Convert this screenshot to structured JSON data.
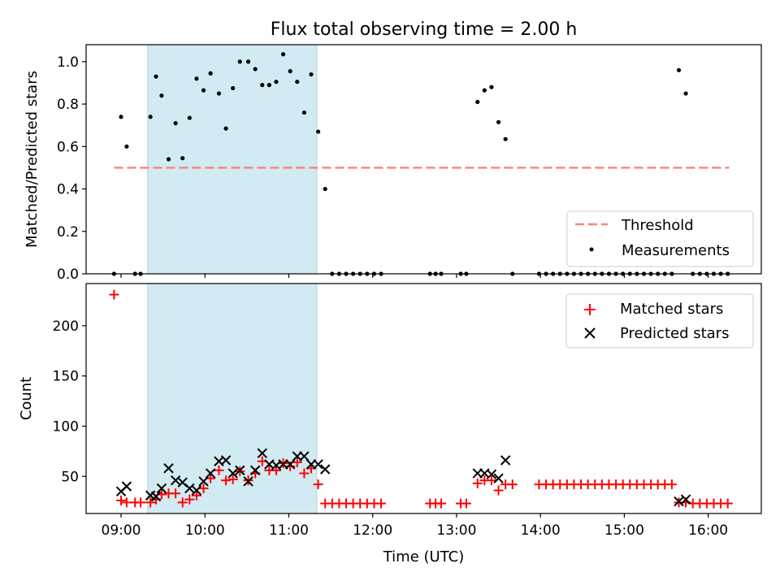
{
  "chart_data": [
    {
      "type": "scatter",
      "title": "Flux total observing time = 2.00 h",
      "xlabel": "",
      "ylabel": "Matched/Predicted stars",
      "xlim": [
        "08:35",
        "16:38"
      ],
      "ylim": [
        0,
        1.08
      ],
      "yticks": [
        0.0,
        0.2,
        0.4,
        0.6,
        0.8,
        1.0
      ],
      "ytick_labels": [
        "0.0",
        "0.2",
        "0.4",
        "0.6",
        "0.8",
        "1.0"
      ],
      "shaded_span": [
        "09:19",
        "11:20"
      ],
      "shade_color": "#add8e6",
      "threshold": {
        "name": "Threshold",
        "y": 0.5,
        "x_range": [
          "08:55",
          "16:15"
        ],
        "color": "#ff7f7f"
      },
      "series": [
        {
          "name": "Measurements",
          "color": "#000000",
          "points": [
            [
              "08:55",
              0.0
            ],
            [
              "09:00",
              0.74
            ],
            [
              "09:04",
              0.6
            ],
            [
              "09:10",
              0.0
            ],
            [
              "09:14",
              0.0
            ],
            [
              "09:21",
              0.74
            ],
            [
              "09:25",
              0.93
            ],
            [
              "09:29",
              0.84
            ],
            [
              "09:34",
              0.54
            ],
            [
              "09:39",
              0.71
            ],
            [
              "09:44",
              0.545
            ],
            [
              "09:49",
              0.735
            ],
            [
              "09:54",
              0.92
            ],
            [
              "09:59",
              0.865
            ],
            [
              "10:04",
              0.945
            ],
            [
              "10:10",
              0.85
            ],
            [
              "10:15",
              0.685
            ],
            [
              "10:20",
              0.875
            ],
            [
              "10:25",
              1.0
            ],
            [
              "10:31",
              1.0
            ],
            [
              "10:36",
              0.965
            ],
            [
              "10:41",
              0.89
            ],
            [
              "10:46",
              0.89
            ],
            [
              "10:51",
              0.905
            ],
            [
              "10:56",
              1.035
            ],
            [
              "11:01",
              0.955
            ],
            [
              "11:06",
              0.905
            ],
            [
              "11:11",
              0.76
            ],
            [
              "11:16",
              0.94
            ],
            [
              "11:21",
              0.67
            ],
            [
              "11:26",
              0.4
            ],
            [
              "11:31",
              0.0
            ],
            [
              "11:36",
              0.0
            ],
            [
              "11:41",
              0.0
            ],
            [
              "11:46",
              0.0
            ],
            [
              "11:51",
              0.0
            ],
            [
              "11:56",
              0.0
            ],
            [
              "12:01",
              0.0
            ],
            [
              "12:06",
              0.0
            ],
            [
              "12:41",
              0.0
            ],
            [
              "12:45",
              0.0
            ],
            [
              "12:49",
              0.0
            ],
            [
              "13:03",
              0.0
            ],
            [
              "13:07",
              0.0
            ],
            [
              "13:15",
              0.81
            ],
            [
              "13:20",
              0.865
            ],
            [
              "13:25",
              0.88
            ],
            [
              "13:30",
              0.715
            ],
            [
              "13:35",
              0.635
            ],
            [
              "13:40",
              0.0
            ],
            [
              "13:59",
              0.0
            ],
            [
              "14:04",
              0.0
            ],
            [
              "14:09",
              0.0
            ],
            [
              "14:14",
              0.0
            ],
            [
              "14:19",
              0.0
            ],
            [
              "14:24",
              0.0
            ],
            [
              "14:29",
              0.0
            ],
            [
              "14:34",
              0.0
            ],
            [
              "14:39",
              0.0
            ],
            [
              "14:44",
              0.0
            ],
            [
              "14:49",
              0.0
            ],
            [
              "14:54",
              0.0
            ],
            [
              "14:59",
              0.0
            ],
            [
              "15:04",
              0.0
            ],
            [
              "15:09",
              0.0
            ],
            [
              "15:14",
              0.0
            ],
            [
              "15:19",
              0.0
            ],
            [
              "15:24",
              0.0
            ],
            [
              "15:29",
              0.0
            ],
            [
              "15:34",
              0.0
            ],
            [
              "15:39",
              0.96
            ],
            [
              "15:44",
              0.85
            ],
            [
              "15:49",
              0.0
            ],
            [
              "15:54",
              0.0
            ],
            [
              "15:59",
              0.0
            ],
            [
              "16:04",
              0.0
            ],
            [
              "16:09",
              0.0
            ],
            [
              "16:14",
              0.0
            ]
          ]
        }
      ],
      "legend": {
        "placement": "lower right",
        "entries": [
          "Threshold",
          "Measurements"
        ]
      },
      "grid": false
    },
    {
      "type": "scatter",
      "title": "",
      "xlabel": "Time (UTC)",
      "ylabel": "Count",
      "xlim": [
        "08:35",
        "16:38"
      ],
      "xticks": [
        "09:00",
        "10:00",
        "11:00",
        "12:00",
        "13:00",
        "14:00",
        "15:00",
        "16:00"
      ],
      "ylim": [
        13,
        242
      ],
      "yticks": [
        50,
        100,
        150,
        200
      ],
      "ytick_labels": [
        "50",
        "100",
        "150",
        "200"
      ],
      "shaded_span": [
        "09:19",
        "11:20"
      ],
      "shade_color": "#add8e6",
      "series": [
        {
          "name": "Matched stars",
          "marker": "plus",
          "color": "#ff0000",
          "points": [
            [
              "08:55",
              231
            ],
            [
              "09:00",
              26
            ],
            [
              "09:04",
              24
            ],
            [
              "09:10",
              24
            ],
            [
              "09:14",
              24
            ],
            [
              "09:21",
              24
            ],
            [
              "09:25",
              27
            ],
            [
              "09:29",
              32
            ],
            [
              "09:34",
              33
            ],
            [
              "09:39",
              33
            ],
            [
              "09:44",
              24
            ],
            [
              "09:49",
              27
            ],
            [
              "09:54",
              31
            ],
            [
              "09:59",
              38
            ],
            [
              "10:04",
              48
            ],
            [
              "10:10",
              56
            ],
            [
              "10:15",
              46
            ],
            [
              "10:20",
              47
            ],
            [
              "10:25",
              55
            ],
            [
              "10:31",
              46
            ],
            [
              "10:36",
              53
            ],
            [
              "10:41",
              65
            ],
            [
              "10:46",
              56
            ],
            [
              "10:51",
              56
            ],
            [
              "10:56",
              63
            ],
            [
              "11:01",
              60
            ],
            [
              "11:06",
              64
            ],
            [
              "11:11",
              53
            ],
            [
              "11:16",
              58
            ],
            [
              "11:21",
              42
            ],
            [
              "11:26",
              23
            ],
            [
              "11:31",
              23
            ],
            [
              "11:36",
              23
            ],
            [
              "11:41",
              23
            ],
            [
              "11:46",
              23
            ],
            [
              "11:51",
              23
            ],
            [
              "11:56",
              23
            ],
            [
              "12:01",
              23
            ],
            [
              "12:06",
              23
            ],
            [
              "12:41",
              23
            ],
            [
              "12:45",
              23
            ],
            [
              "12:49",
              23
            ],
            [
              "13:03",
              23
            ],
            [
              "13:07",
              23
            ],
            [
              "13:15",
              43
            ],
            [
              "13:20",
              46
            ],
            [
              "13:25",
              46
            ],
            [
              "13:30",
              36
            ],
            [
              "13:35",
              42
            ],
            [
              "13:40",
              42
            ],
            [
              "13:59",
              42
            ],
            [
              "14:04",
              42
            ],
            [
              "14:09",
              42
            ],
            [
              "14:14",
              42
            ],
            [
              "14:19",
              42
            ],
            [
              "14:24",
              42
            ],
            [
              "14:29",
              42
            ],
            [
              "14:34",
              42
            ],
            [
              "14:39",
              42
            ],
            [
              "14:44",
              42
            ],
            [
              "14:49",
              42
            ],
            [
              "14:54",
              42
            ],
            [
              "14:59",
              42
            ],
            [
              "15:04",
              42
            ],
            [
              "15:09",
              42
            ],
            [
              "15:14",
              42
            ],
            [
              "15:19",
              42
            ],
            [
              "15:24",
              42
            ],
            [
              "15:29",
              42
            ],
            [
              "15:34",
              42
            ],
            [
              "15:39",
              24
            ],
            [
              "15:44",
              24
            ],
            [
              "15:49",
              23
            ],
            [
              "15:54",
              23
            ],
            [
              "15:59",
              23
            ],
            [
              "16:04",
              23
            ],
            [
              "16:09",
              23
            ],
            [
              "16:14",
              23
            ]
          ]
        },
        {
          "name": "Predicted stars",
          "marker": "x",
          "color": "#000000",
          "points": [
            [
              "09:00",
              35
            ],
            [
              "09:04",
              40
            ],
            [
              "09:21",
              31
            ],
            [
              "09:25",
              30
            ],
            [
              "09:29",
              38
            ],
            [
              "09:34",
              58
            ],
            [
              "09:39",
              46
            ],
            [
              "09:44",
              44
            ],
            [
              "09:49",
              38
            ],
            [
              "09:54",
              36
            ],
            [
              "09:59",
              45
            ],
            [
              "10:04",
              53
            ],
            [
              "10:10",
              65
            ],
            [
              "10:15",
              66
            ],
            [
              "10:20",
              53
            ],
            [
              "10:25",
              56
            ],
            [
              "10:31",
              45
            ],
            [
              "10:36",
              56
            ],
            [
              "10:41",
              73
            ],
            [
              "10:46",
              62
            ],
            [
              "10:51",
              61
            ],
            [
              "10:56",
              62
            ],
            [
              "11:01",
              62
            ],
            [
              "11:06",
              70
            ],
            [
              "11:11",
              70
            ],
            [
              "11:16",
              62
            ],
            [
              "11:21",
              62
            ],
            [
              "11:26",
              57
            ],
            [
              "13:15",
              53
            ],
            [
              "13:20",
              53
            ],
            [
              "13:25",
              52
            ],
            [
              "13:30",
              48
            ],
            [
              "13:35",
              66
            ],
            [
              "15:39",
              25
            ],
            [
              "15:44",
              27
            ]
          ]
        }
      ],
      "legend": {
        "placement": "upper right",
        "entries": [
          "Matched stars",
          "Predicted stars"
        ]
      },
      "grid": false
    }
  ]
}
